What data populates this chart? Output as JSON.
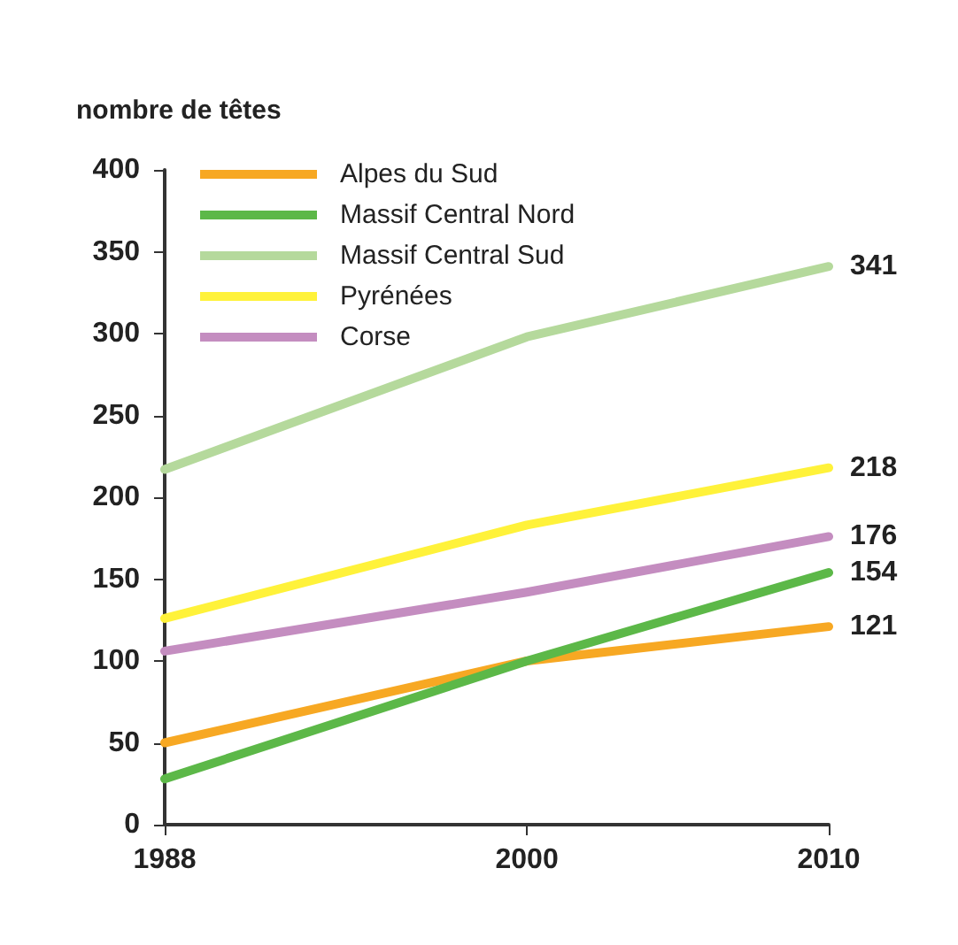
{
  "chart_data": {
    "type": "line",
    "ylabel": "nombre de têtes",
    "x": [
      1988,
      2000,
      2010
    ],
    "xlim": [
      1988,
      2010
    ],
    "xticks": [
      1988,
      2000,
      2010
    ],
    "ylim": [
      0,
      400
    ],
    "yticks": [
      0,
      50,
      100,
      150,
      200,
      250,
      300,
      350,
      400
    ],
    "grid": false,
    "legend": "top left",
    "marker": "none",
    "line_style": "solid",
    "series": [
      {
        "name": "Alpes du Sud",
        "color": "#f7a823",
        "values": [
          50,
          100,
          121
        ],
        "value_labels": [
          null,
          null,
          "121"
        ]
      },
      {
        "name": "Massif Central Nord",
        "color": "#5cb848",
        "values": [
          28,
          100,
          154
        ],
        "value_labels": [
          null,
          null,
          "154"
        ]
      },
      {
        "name": "Massif Central Sud",
        "color": "#b5d99c",
        "values": [
          217,
          298,
          341
        ],
        "value_labels": [
          null,
          null,
          "341"
        ]
      },
      {
        "name": "Pyrénées",
        "color": "#fff23a",
        "values": [
          126,
          183,
          218
        ],
        "value_labels": [
          null,
          null,
          "218"
        ]
      },
      {
        "name": "Corse",
        "color": "#c48dc0",
        "values": [
          106,
          142,
          176
        ],
        "value_labels": [
          null,
          null,
          "176"
        ]
      }
    ]
  }
}
